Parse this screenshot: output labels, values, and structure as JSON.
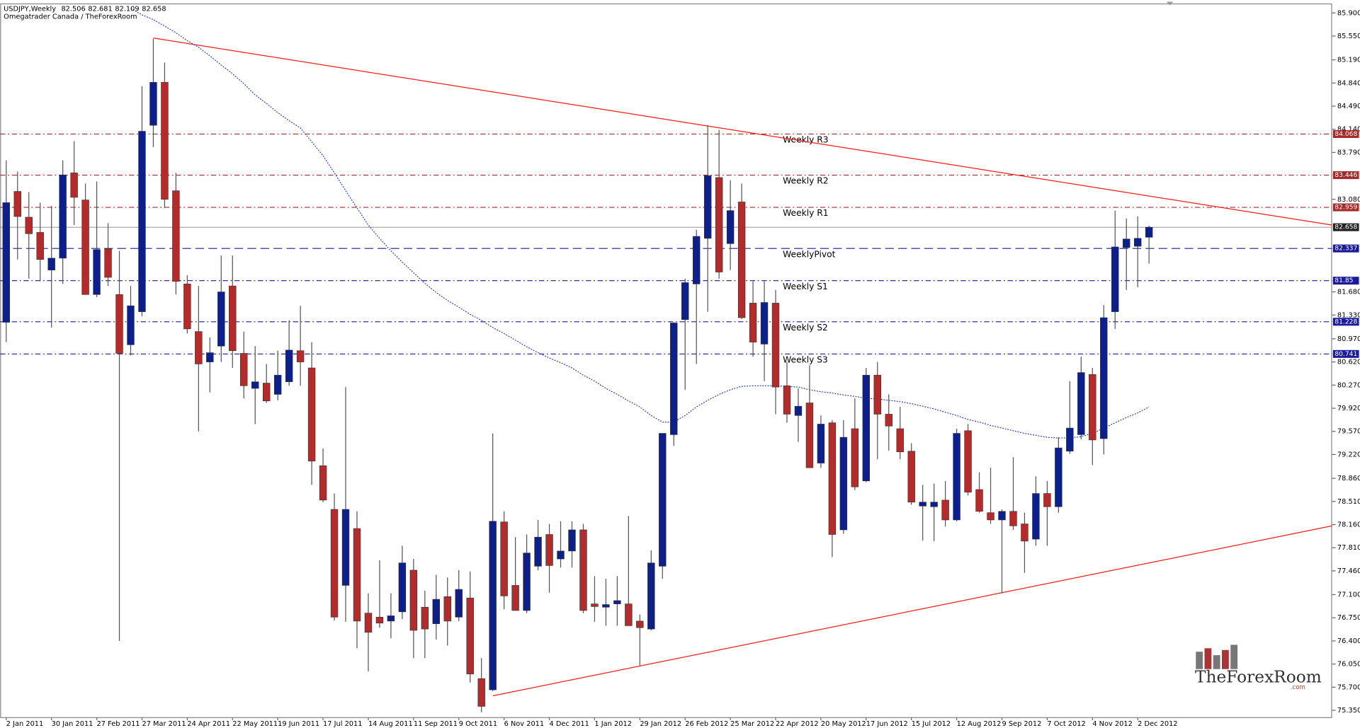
{
  "header": {
    "symbol": "USDJPY,Weekly",
    "source": "Omegatrader Canada / TheForexRoom"
  },
  "logo": {
    "name": "TheForexRoom",
    "domain": ".com"
  },
  "chart_data": {
    "type": "candlestick",
    "up_color": "#0d1f8a",
    "down_color": "#b32b2b",
    "wick_color": "#555555",
    "categories": [
      "2 Jan 2011",
      null,
      null,
      null,
      "30 Jan 2011",
      null,
      null,
      null,
      "27 Feb 2011",
      null,
      null,
      null,
      "27 Mar 2011",
      null,
      null,
      null,
      "24 Apr 2011",
      null,
      null,
      null,
      "22 May 2011",
      null,
      null,
      null,
      "19 Jun 2011",
      null,
      null,
      null,
      "17 Jul 2011",
      null,
      null,
      null,
      "14 Aug 2011",
      null,
      null,
      null,
      "11 Sep 2011",
      null,
      null,
      null,
      "9 Oct 2011",
      null,
      null,
      null,
      "6 Nov 2011",
      null,
      null,
      null,
      "4 Dec 2011",
      null,
      null,
      null,
      "1 Jan 2012",
      null,
      null,
      null,
      "29 Jan 2012",
      null,
      null,
      null,
      "26 Feb 2012",
      null,
      null,
      null,
      "25 Mar 2012",
      null,
      null,
      null,
      "22 Apr 2012",
      null,
      null,
      null,
      "20 May 2012",
      null,
      null,
      null,
      "17 Jun 2012",
      null,
      null,
      null,
      "15 Jul 2012",
      null,
      null,
      null,
      "12 Aug 2012",
      null,
      null,
      null,
      "9 Sep 2012",
      null,
      null,
      null,
      "7 Oct 2012",
      null,
      null,
      null,
      "4 Nov 2012",
      null,
      null,
      null,
      "2 Dec 2012",
      null
    ],
    "open": [
      81.22,
      83.2,
      82.81,
      82.58,
      82.01,
      82.19,
      83.48,
      83.07,
      81.64,
      82.33,
      81.64,
      80.88,
      81.38,
      84.2,
      84.85,
      83.21,
      81.8,
      81.08,
      80.62,
      80.86,
      81.77,
      80.75,
      80.22,
      80.3,
      80.13,
      80.32,
      80.79,
      80.53,
      79.05,
      78.39,
      77.24,
      78.1,
      76.82,
      76.76,
      76.7,
      76.84,
      77.47,
      76.91,
      76.66,
      77.07,
      76.76,
      77.05,
      75.83,
      75.66,
      78.2,
      77.24,
      76.86,
      77.53,
      78.01,
      77.64,
      77.76,
      78.08,
      76.96,
      76.91,
      76.96,
      76.96,
      76.7,
      76.58,
      77.53,
      79.52,
      81.26,
      81.8,
      82.49,
      83.41,
      82.41,
      83.04,
      81.51,
      80.89,
      81.51,
      80.26,
      79.81,
      80.0,
      79.09,
      79.7,
      78.08,
      79.61,
      78.82,
      80.42,
      79.83,
      79.61,
      79.27,
      78.44,
      78.43,
      78.53,
      78.23,
      79.58,
      78.69,
      78.34,
      78.23,
      78.36,
      78.17,
      77.94,
      78.63,
      78.43,
      79.27,
      79.52,
      80.43,
      79.46,
      81.38,
      82.35,
      82.37,
      82.506
    ],
    "high": [
      83.67,
      83.5,
      83.19,
      83.03,
      82.98,
      83.67,
      83.96,
      83.32,
      83.35,
      82.72,
      82.3,
      81.77,
      84.79,
      85.51,
      85.15,
      83.48,
      81.93,
      81.77,
      80.99,
      82.23,
      82.23,
      81.08,
      80.86,
      80.59,
      80.79,
      81.25,
      81.47,
      80.92,
      79.31,
      78.63,
      80.24,
      78.36,
      77.12,
      77.62,
      77.12,
      77.84,
      77.64,
      77.16,
      77.4,
      77.36,
      77.47,
      77.45,
      76.14,
      79.54,
      78.36,
      77.97,
      78.01,
      78.23,
      78.17,
      78.21,
      78.21,
      78.17,
      77.38,
      77.34,
      77.38,
      78.29,
      76.8,
      77.77,
      79.54,
      81.22,
      81.88,
      82.62,
      84.2,
      84.13,
      83.37,
      83.32,
      81.84,
      81.84,
      81.71,
      80.62,
      80.22,
      80.57,
      79.81,
      79.74,
      79.74,
      80.07,
      80.53,
      80.62,
      80.13,
      79.94,
      79.39,
      78.76,
      78.78,
      78.82,
      79.61,
      79.68,
      78.95,
      79.02,
      78.39,
      79.18,
      78.34,
      78.89,
      78.82,
      79.48,
      80.33,
      80.7,
      80.53,
      81.48,
      82.91,
      82.79,
      82.82,
      82.681
    ],
    "low": [
      80.92,
      82.17,
      81.88,
      81.84,
      81.14,
      81.8,
      82.69,
      81.64,
      81.6,
      81.77,
      76.4,
      80.72,
      81.31,
      83.87,
      82.95,
      81.64,
      81.05,
      79.57,
      80.16,
      80.62,
      80.53,
      80.07,
      79.68,
      80.0,
      80.04,
      80.26,
      80.26,
      78.76,
      78.5,
      76.71,
      76.69,
      76.29,
      75.94,
      76.6,
      76.44,
      76.73,
      76.14,
      76.14,
      76.42,
      76.33,
      76.7,
      75.77,
      75.32,
      75.64,
      76.88,
      76.86,
      76.82,
      77.47,
      77.13,
      77.51,
      77.51,
      76.82,
      76.69,
      76.63,
      76.63,
      76.63,
      76.03,
      76.56,
      77.34,
      79.35,
      80.2,
      80.59,
      81.38,
      81.88,
      82.01,
      81.27,
      80.7,
      80.33,
      79.83,
      79.7,
      79.41,
      79.02,
      79.02,
      77.67,
      78.02,
      78.68,
      78.8,
      79.15,
      79.28,
      79.15,
      78.46,
      77.92,
      77.91,
      78.13,
      78.21,
      78.6,
      78.34,
      78.17,
      77.12,
      78.08,
      77.43,
      77.84,
      77.84,
      78.34,
      79.23,
      79.45,
      79.06,
      79.22,
      81.12,
      81.71,
      81.75,
      82.109
    ],
    "close": [
      83.03,
      82.82,
      82.56,
      82.17,
      82.19,
      83.45,
      83.11,
      81.64,
      82.32,
      81.9,
      80.75,
      81.47,
      84.11,
      84.85,
      83.08,
      81.84,
      81.12,
      80.59,
      80.76,
      81.68,
      80.79,
      80.26,
      80.32,
      80.03,
      80.42,
      80.8,
      80.62,
      79.12,
      78.53,
      76.76,
      78.39,
      76.7,
      76.53,
      76.67,
      76.78,
      77.58,
      76.56,
      76.58,
      77.03,
      76.7,
      77.18,
      75.9,
      75.41,
      78.21,
      77.08,
      76.86,
      77.73,
      77.97,
      77.54,
      77.76,
      78.08,
      76.86,
      76.92,
      76.95,
      77.01,
      76.63,
      76.6,
      77.58,
      79.54,
      81.21,
      81.82,
      82.52,
      83.44,
      81.98,
      82.91,
      81.29,
      80.92,
      81.52,
      80.24,
      79.83,
      79.95,
      79.02,
      79.68,
      78.01,
      79.48,
      78.73,
      80.42,
      79.83,
      79.65,
      79.26,
      78.5,
      78.5,
      78.5,
      78.23,
      79.54,
      78.65,
      78.36,
      78.23,
      78.36,
      78.14,
      77.91,
      78.63,
      78.43,
      79.32,
      79.62,
      80.46,
      79.44,
      81.29,
      82.36,
      82.48,
      82.49,
      82.658
    ],
    "current_price_color": "#888888",
    "moving_average": {
      "color": "#1e3cd2",
      "values": [
        null,
        null,
        null,
        null,
        null,
        null,
        null,
        null,
        null,
        null,
        null,
        85.97,
        85.87,
        85.8,
        85.7,
        85.6,
        85.48,
        85.38,
        85.25,
        85.11,
        84.98,
        84.83,
        84.66,
        84.53,
        84.39,
        84.27,
        84.16,
        83.95,
        83.74,
        83.48,
        83.21,
        82.95,
        82.69,
        82.49,
        82.3,
        82.13,
        81.97,
        81.81,
        81.67,
        81.55,
        81.45,
        81.34,
        81.25,
        81.14,
        81.05,
        80.95,
        80.85,
        80.76,
        80.68,
        80.61,
        80.53,
        80.42,
        80.33,
        80.22,
        80.13,
        80.03,
        79.94,
        79.81,
        79.71,
        79.71,
        79.81,
        79.94,
        80.04,
        80.13,
        80.2,
        80.25,
        80.26,
        80.26,
        80.26,
        80.25,
        80.24,
        80.2,
        80.17,
        80.15,
        80.12,
        80.1,
        80.07,
        80.06,
        80.04,
        80.02,
        79.99,
        79.95,
        79.91,
        79.86,
        79.81,
        79.75,
        79.71,
        79.66,
        79.62,
        79.58,
        79.54,
        79.51,
        79.48,
        79.47,
        79.47,
        79.49,
        79.54,
        79.62,
        79.7,
        79.78,
        79.85,
        79.94
      ]
    },
    "trendlines": [
      {
        "color": "#ff1a1a",
        "x": [
          13,
          101
        ],
        "values": [
          85.52,
          83.13
        ]
      },
      {
        "color": "#ff1a1a",
        "x": [
          43,
          101
        ],
        "values": [
          75.57,
          77.58
        ]
      }
    ],
    "levels": [
      {
        "label": "Weekly R3",
        "value": 84.068,
        "color": "#a52a2a",
        "dash": "dash-dot"
      },
      {
        "label": "Weekly R2",
        "value": 83.446,
        "color": "#a52a2a",
        "dash": "dash-dot"
      },
      {
        "label": "Weekly R1",
        "value": 82.959,
        "color": "#a52a2a",
        "dash": "dash-dot"
      },
      {
        "label": "WeeklyPivot",
        "value": 82.337,
        "color": "#1a1a9a",
        "dash": "dash"
      },
      {
        "label": "Weekly S1",
        "value": 81.85,
        "color": "#1a1a9a",
        "dash": "dash-dot"
      },
      {
        "label": "Weekly S2",
        "value": 81.228,
        "color": "#1a1a9a",
        "dash": "dash-dot"
      },
      {
        "label": "Weekly S3",
        "value": 80.741,
        "color": "#1a1a9a",
        "dash": "dash-dot"
      }
    ],
    "ylim": [
      75.24,
      86.03
    ],
    "yticks": [
      {
        "value": 85.9,
        "label": "85.900"
      },
      {
        "value": 85.55,
        "label": "85.550"
      },
      {
        "value": 85.19,
        "label": "85.190"
      },
      {
        "value": 84.84,
        "label": "84.840"
      },
      {
        "value": 84.49,
        "label": "84.490"
      },
      {
        "value": 84.14,
        "label": "84.140"
      },
      {
        "value": 83.79,
        "label": "83.790"
      },
      {
        "value": 83.08,
        "label": "83.080"
      },
      {
        "value": 81.68,
        "label": "81.680"
      },
      {
        "value": 81.33,
        "label": "81.330"
      },
      {
        "value": 80.97,
        "label": "80.970"
      },
      {
        "value": 80.62,
        "label": "80.620"
      },
      {
        "value": 80.27,
        "label": "80.270"
      },
      {
        "value": 79.92,
        "label": "79.920"
      },
      {
        "value": 79.57,
        "label": "79.570"
      },
      {
        "value": 79.22,
        "label": "79.220"
      },
      {
        "value": 78.86,
        "label": "78.860"
      },
      {
        "value": 78.51,
        "label": "78.510"
      },
      {
        "value": 78.16,
        "label": "78.160"
      },
      {
        "value": 77.81,
        "label": "77.810"
      },
      {
        "value": 77.46,
        "label": "77.460"
      },
      {
        "value": 77.1,
        "label": "77.100"
      },
      {
        "value": 76.75,
        "label": "76.750"
      },
      {
        "value": 76.4,
        "label": "76.400"
      },
      {
        "value": 76.05,
        "label": "76.050"
      },
      {
        "value": 75.7,
        "label": "75.700"
      },
      {
        "value": 75.35,
        "label": "75.350"
      }
    ]
  }
}
